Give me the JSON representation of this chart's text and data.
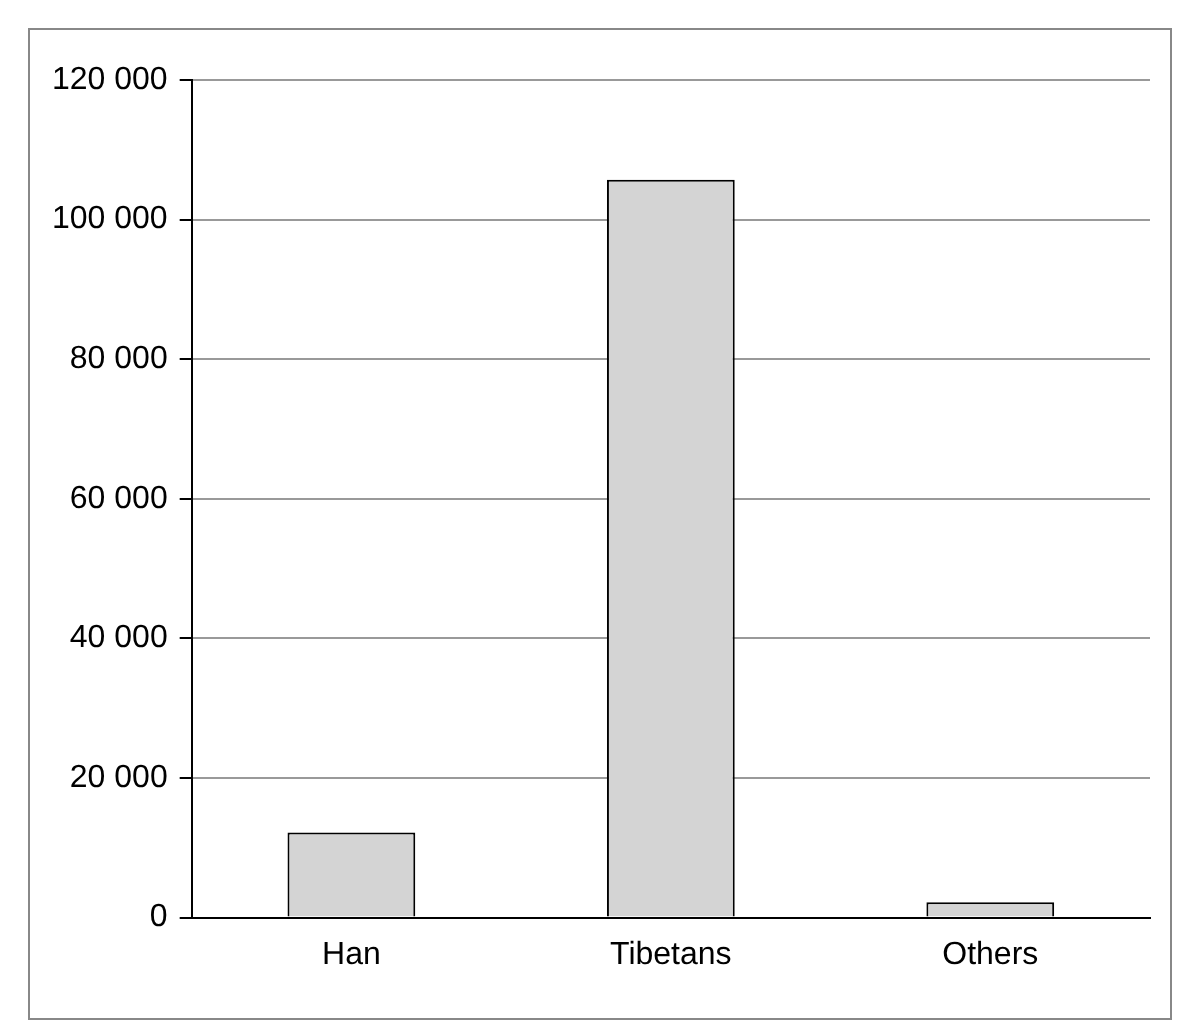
{
  "chart_data": {
    "type": "bar",
    "categories": [
      "Han",
      "Tibetans",
      "Others"
    ],
    "values": [
      12200,
      105700,
      2200
    ],
    "color": "#d4d4d4",
    "ylim": [
      0,
      120000
    ],
    "yticks": [
      {
        "value": 0,
        "label": "0"
      },
      {
        "value": 20000,
        "label": "20 000"
      },
      {
        "value": 40000,
        "label": "40 000"
      },
      {
        "value": 60000,
        "label": "60 000"
      },
      {
        "value": 80000,
        "label": "80 000"
      },
      {
        "value": 100000,
        "label": "100 000"
      },
      {
        "value": 120000,
        "label": "120 000"
      }
    ],
    "grid": "y"
  }
}
